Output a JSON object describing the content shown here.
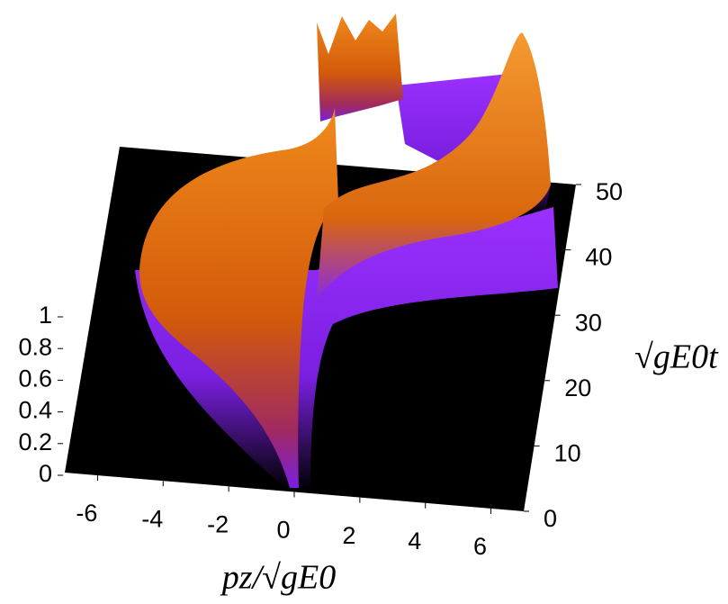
{
  "chart_data": {
    "type": "surface3d",
    "xlabel": "pz/√gE0",
    "ylabel": "√gE0t",
    "xlim": [
      -7,
      7
    ],
    "xticks": [
      -6,
      -4,
      -2,
      0,
      2,
      4,
      6
    ],
    "ylim": [
      0,
      50
    ],
    "yticks": [
      0,
      10,
      20,
      30,
      40,
      50
    ],
    "zlim": [
      0,
      1
    ],
    "zticks": [
      0,
      0.2,
      0.4,
      0.6,
      0.8,
      1
    ]
  }
}
